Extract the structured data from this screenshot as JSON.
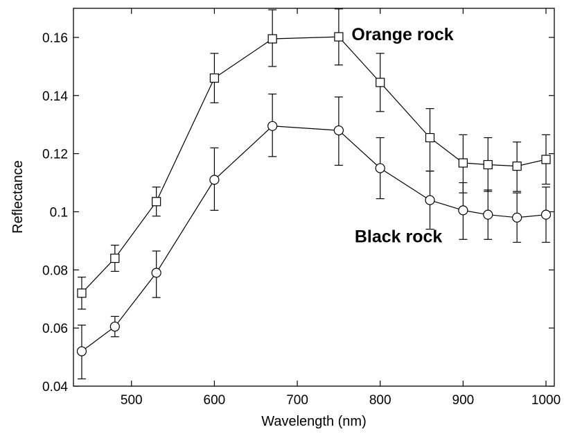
{
  "chart_data": {
    "type": "line",
    "title": "",
    "xlabel": "Wavelength (nm)",
    "ylabel": "Reflectance",
    "xlim": [
      430,
      1010
    ],
    "ylim": [
      0.04,
      0.17
    ],
    "grid": false,
    "legend": "none",
    "x_ticks": [
      500,
      600,
      700,
      800,
      900,
      1000
    ],
    "x_tick_labels": [
      "500",
      "600",
      "700",
      "800",
      "900",
      "1000"
    ],
    "y_ticks": [
      0.04,
      0.06,
      0.08,
      0.1,
      0.12,
      0.14,
      0.16
    ],
    "y_tick_labels": [
      "0.04",
      "0.06",
      "0.08",
      "0.1",
      "0.12",
      "0.14",
      "0.16"
    ],
    "x": [
      440,
      480,
      530,
      600,
      670,
      750,
      800,
      860,
      900,
      930,
      965,
      1000
    ],
    "series": [
      {
        "marker": "square",
        "values": [
          0.072,
          0.084,
          0.1035,
          0.146,
          0.1595,
          0.1602,
          0.1445,
          0.1255,
          0.1168,
          0.1162,
          0.1157,
          0.118
        ],
        "error_low": [
          0.0665,
          0.0795,
          0.0985,
          0.1375,
          0.15,
          0.1505,
          0.1345,
          0.114,
          0.1065,
          0.107,
          0.107,
          0.1095
        ],
        "error_high": [
          0.0775,
          0.0885,
          0.1085,
          0.1545,
          0.1695,
          0.1698,
          0.1545,
          0.1355,
          0.1265,
          0.1255,
          0.124,
          0.1265
        ]
      },
      {
        "marker": "circle",
        "values": [
          0.052,
          0.0605,
          0.079,
          0.111,
          0.1295,
          0.128,
          0.115,
          0.104,
          0.1005,
          0.099,
          0.098,
          0.099
        ],
        "error_low": [
          0.0425,
          0.057,
          0.0705,
          0.1005,
          0.119,
          0.116,
          0.1045,
          0.094,
          0.0905,
          0.0905,
          0.0895,
          0.0895
        ],
        "error_high": [
          0.061,
          0.064,
          0.0865,
          0.122,
          0.1405,
          0.1395,
          0.1255,
          0.114,
          0.11,
          0.1075,
          0.1065,
          0.1085
        ]
      }
    ],
    "annotations": [
      {
        "text": "Orange rock",
        "x": 827,
        "y": 0.159
      },
      {
        "text": "Black rock",
        "x": 822,
        "y": 0.0895
      }
    ]
  }
}
